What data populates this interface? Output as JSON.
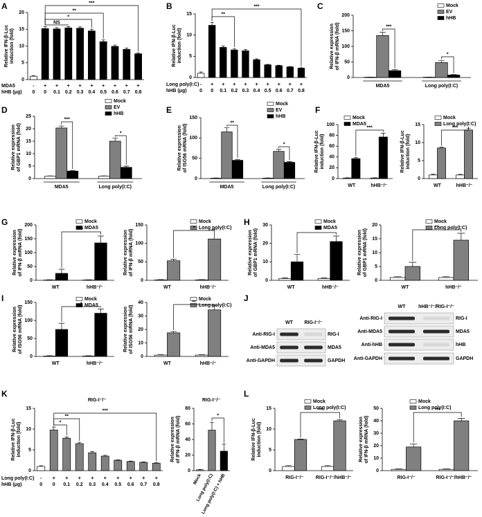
{
  "chart_data": [
    {
      "panel": "A",
      "type": "bar",
      "y_label": [
        "Relative IFN-β-Luc",
        "induction (fold)"
      ],
      "ylim": [
        0,
        20
      ],
      "yticks": [
        0,
        5,
        10,
        15,
        20
      ],
      "rows": [
        {
          "label": "MDA5",
          "values": [
            "-",
            "+",
            "+",
            "+",
            "+",
            "+",
            "+",
            "+",
            "+",
            "+"
          ]
        },
        {
          "label": "hHB (μg)",
          "values": [
            0,
            0,
            0.1,
            0.2,
            0.3,
            0.4,
            0.5,
            0.6,
            0.7,
            0.8
          ]
        }
      ],
      "values": [
        1,
        15.2,
        15.1,
        15.4,
        15.3,
        14.5,
        11.3,
        9.9,
        9,
        7.7
      ],
      "errors": [
        0.2,
        0.6,
        0.4,
        0.4,
        0.4,
        0.5,
        0.5,
        0.4,
        0.4,
        0.3
      ],
      "colors": [
        "#ffffff",
        "#000000",
        "#000000",
        "#000000",
        "#000000",
        "#000000",
        "#000000",
        "#000000",
        "#000000",
        "#000000"
      ],
      "annotations": [
        "NS",
        "*",
        "**",
        "***"
      ]
    },
    {
      "panel": "B",
      "type": "bar",
      "y_label": [
        "Relative IFN-β-Luc",
        "induction (fold)"
      ],
      "ylim": [
        0,
        15
      ],
      "yticks": [
        0,
        5,
        10,
        15
      ],
      "rows": [
        {
          "label": "Long poly(I:C)",
          "values": [
            "-",
            "+",
            "+",
            "+",
            "+",
            "+",
            "+",
            "+",
            "+",
            "+"
          ]
        },
        {
          "label": "hHB (μg)",
          "values": [
            0,
            0,
            0.1,
            0.2,
            0.3,
            0.4,
            0.5,
            0.6,
            0.7,
            0.8
          ]
        }
      ],
      "values": [
        1,
        12.3,
        7.1,
        6.5,
        6.3,
        4.2,
        3,
        2.8,
        2.5,
        2.2
      ],
      "errors": [
        0.3,
        0.7,
        0.3,
        0.3,
        0.3,
        0.2,
        0.1,
        0.1,
        0.1,
        0.1
      ],
      "colors": [
        "#ffffff",
        "#000000",
        "#000000",
        "#000000",
        "#000000",
        "#000000",
        "#000000",
        "#000000",
        "#000000",
        "#000000"
      ],
      "annotations": [
        "**",
        "***"
      ]
    },
    {
      "panel": "C",
      "type": "bar",
      "y_label": [
        "Relative expression",
        "of IFN-β mRNA (fold)"
      ],
      "ylim": [
        0,
        200
      ],
      "yticks": [
        0,
        50,
        100,
        150,
        200
      ],
      "categories": [
        "MDA5",
        "Long poly(I:C)"
      ],
      "series": [
        {
          "name": "Mock",
          "color": "#ffffff",
          "values": [
            1,
            1
          ],
          "errors": [
            0.5,
            0.5
          ]
        },
        {
          "name": "EV",
          "color": "#808080",
          "values": [
            135,
            48
          ],
          "errors": [
            10,
            6
          ]
        },
        {
          "name": "hHB",
          "color": "#000000",
          "values": [
            22,
            8
          ],
          "errors": [
            3,
            1.5
          ]
        }
      ],
      "annotations": [
        "***",
        "*"
      ]
    },
    {
      "panel": "D",
      "type": "bar",
      "y_label": [
        "Relative expression",
        "of GBP1 mRNA (fold)"
      ],
      "ylim": [
        0,
        25
      ],
      "yticks": [
        0,
        5,
        10,
        15,
        20,
        25
      ],
      "categories": [
        "MDA5",
        "Long poly(I:C)"
      ],
      "series": [
        {
          "name": "Mock",
          "color": "#ffffff",
          "values": [
            1,
            1
          ],
          "errors": [
            0.1,
            0.1
          ]
        },
        {
          "name": "EV",
          "color": "#808080",
          "values": [
            20.3,
            15
          ],
          "errors": [
            0.8,
            1.2
          ]
        },
        {
          "name": "hHB",
          "color": "#000000",
          "values": [
            3,
            4.5
          ],
          "errors": [
            0.2,
            0.5
          ]
        }
      ],
      "annotations": [
        "***",
        "*"
      ]
    },
    {
      "panel": "E",
      "type": "bar",
      "y_label": [
        "Relative expression",
        "of ISG56 mRNA (fold)"
      ],
      "ylim": [
        0,
        150
      ],
      "yticks": [
        0,
        50,
        100,
        150
      ],
      "categories": [
        "MDA5",
        "Long poly(I:C)"
      ],
      "series": [
        {
          "name": "Mock",
          "color": "#ffffff",
          "values": [
            1,
            1
          ],
          "errors": [
            0.5,
            0.5
          ]
        },
        {
          "name": "EV",
          "color": "#808080",
          "values": [
            115,
            67
          ],
          "errors": [
            10,
            5
          ]
        },
        {
          "name": "hHB",
          "color": "#000000",
          "values": [
            45,
            40
          ],
          "errors": [
            2,
            2
          ]
        }
      ],
      "annotations": [
        "**",
        "*"
      ]
    },
    {
      "panel": "F",
      "type": "bar",
      "y_label": [
        "Relative IFN-β-Luc",
        "induction (fold)"
      ],
      "ylim": [
        0,
        100
      ],
      "yticks": [
        0,
        20,
        40,
        60,
        80,
        100
      ],
      "categories": [
        "WT",
        "hHB⁻/⁻"
      ],
      "series": [
        {
          "name": "Mock",
          "color": "#ffffff",
          "values": [
            1,
            1
          ],
          "errors": [
            0.5,
            0.5
          ]
        },
        {
          "name": "MDA5",
          "color": "#000000",
          "values": [
            37,
            77
          ],
          "errors": [
            2,
            7
          ]
        }
      ],
      "annotations": [
        "***"
      ]
    },
    {
      "type": "bar",
      "y_label": [
        "Relative IFN-β-Luc",
        "induction (fold)"
      ],
      "ylim": [
        0,
        15
      ],
      "yticks": [
        0,
        5,
        10,
        15
      ],
      "categories": [
        "WT",
        "hHB⁻/⁻"
      ],
      "series": [
        {
          "name": "Mock",
          "color": "#ffffff",
          "values": [
            1,
            1
          ],
          "errors": [
            0.2,
            0.15
          ]
        },
        {
          "name": "Long poly(I:C)",
          "color": "#808080",
          "values": [
            8.5,
            13.5
          ],
          "errors": [
            0.2,
            0.5
          ]
        }
      ],
      "annotations": [
        "***"
      ]
    },
    {
      "panel": "G",
      "type": "bar",
      "y_label": [
        "Relative expression",
        "of IFN-β mRNA (fold)"
      ],
      "ylim": [
        0,
        200
      ],
      "yticks": [
        0,
        50,
        100,
        150,
        200
      ],
      "categories": [
        "WT",
        "hHB⁻/⁻"
      ],
      "series": [
        {
          "name": "Mock",
          "color": "#ffffff",
          "values": [
            1,
            1
          ],
          "errors": [
            1,
            1
          ]
        },
        {
          "name": "MDA5",
          "color": "#000000",
          "values": [
            25,
            135
          ],
          "errors": [
            15,
            25
          ]
        }
      ],
      "annotations": [
        "**"
      ]
    },
    {
      "type": "bar",
      "y_label": [
        "Relative expression",
        "of IFN-β mRNA (fold)"
      ],
      "ylim": [
        0,
        150
      ],
      "yticks": [
        0,
        50,
        100,
        150
      ],
      "categories": [
        "WT",
        "hHB⁻/⁻"
      ],
      "series": [
        {
          "name": "Mock",
          "color": "#ffffff",
          "values": [
            1,
            1
          ],
          "errors": [
            1,
            1
          ]
        },
        {
          "name": "Long poly(I:C)",
          "color": "#808080",
          "values": [
            53,
            112
          ],
          "errors": [
            4,
            25
          ]
        }
      ],
      "annotations": [
        "*"
      ]
    },
    {
      "panel": "H",
      "type": "bar",
      "y_label": [
        "Relative expression",
        "of GBP1 mRNA (fold)"
      ],
      "ylim": [
        0,
        30
      ],
      "yticks": [
        0,
        10,
        20,
        30
      ],
      "categories": [
        "WT",
        "hHB⁻/⁻"
      ],
      "series": [
        {
          "name": "Mock",
          "color": "#ffffff",
          "values": [
            1,
            1
          ],
          "errors": [
            0.3,
            0.3
          ]
        },
        {
          "name": "MDA5",
          "color": "#000000",
          "values": [
            10,
            21
          ],
          "errors": [
            4,
            3
          ]
        }
      ],
      "annotations": [
        "*"
      ]
    },
    {
      "type": "bar",
      "y_label": [
        "Relative expression",
        "of GBP1 mRNA (fold)"
      ],
      "ylim": [
        0,
        20
      ],
      "yticks": [
        0,
        5,
        10,
        15,
        20
      ],
      "categories": [
        "WT",
        "hHB⁻/⁻"
      ],
      "series": [
        {
          "name": "Mock",
          "color": "#ffffff",
          "values": [
            1,
            1
          ],
          "errors": [
            0.3,
            0.3
          ]
        },
        {
          "name": "Long poly(I:C)",
          "color": "#808080",
          "values": [
            5,
            14.5
          ],
          "errors": [
            1.5,
            2.5
          ]
        }
      ],
      "annotations": [
        "**"
      ]
    },
    {
      "panel": "I",
      "type": "bar",
      "y_label": [
        "Relative expression",
        "of ISG56 mRNA (fold)"
      ],
      "ylim": [
        0,
        150
      ],
      "yticks": [
        0,
        50,
        100,
        150
      ],
      "categories": [
        "WT",
        "hHB⁻/⁻"
      ],
      "series": [
        {
          "name": "Mock",
          "color": "#ffffff",
          "values": [
            1,
            1
          ],
          "errors": [
            1,
            1
          ]
        },
        {
          "name": "MDA5",
          "color": "#000000",
          "values": [
            75,
            120
          ],
          "errors": [
            17,
            12
          ]
        }
      ],
      "annotations": [
        "*"
      ]
    },
    {
      "type": "bar",
      "y_label": [
        "Relative expression",
        "of ISG56 mRNA (fold)"
      ],
      "ylim": [
        0,
        40
      ],
      "yticks": [
        0,
        10,
        20,
        30,
        40
      ],
      "categories": [
        "WT",
        "hHB⁻/⁻"
      ],
      "series": [
        {
          "name": "Mock",
          "color": "#ffffff",
          "values": [
            1,
            1
          ],
          "errors": [
            0.3,
            0.3
          ]
        },
        {
          "name": "Long poly(I:C)",
          "color": "#808080",
          "values": [
            17.5,
            34.5
          ],
          "errors": [
            1,
            3
          ]
        }
      ],
      "annotations": [
        "**"
      ]
    },
    {
      "panel": "J",
      "type": "blot",
      "columns": [
        "WT",
        "RIG-I⁻/⁻"
      ],
      "antibodies": [
        "Anti-RIG-I",
        "Anti-MDA5",
        "Anti-GAPDH"
      ],
      "proteins": [
        "RIG-I",
        "MDA5",
        "GAPDH"
      ]
    },
    {
      "type": "blot",
      "columns": [
        "WT",
        "hHB⁻/⁻/RIG-I⁻/⁻"
      ],
      "antibodies": [
        "Anti-RIG-I",
        "Anti-MDA5",
        "Anti-hHB",
        "Anti-GAPDH"
      ],
      "proteins": [
        "RIG-I",
        "MDA5",
        "hHB",
        "GAPDH"
      ]
    },
    {
      "panel": "K",
      "type": "bar",
      "title": "RIG-I⁻/⁻",
      "y_label": [
        "Relative IFN-β-Luc",
        "induction (fold)"
      ],
      "ylim": [
        0,
        15
      ],
      "yticks": [
        0,
        5,
        10,
        15
      ],
      "rows": [
        {
          "label": "Long poly(I:C)",
          "values": [
            "-",
            "+",
            "+",
            "+",
            "+",
            "+",
            "+",
            "+",
            "+",
            "+"
          ]
        },
        {
          "label": "hHB (μg)",
          "values": [
            0,
            0,
            0.1,
            0.2,
            0.3,
            0.4,
            0.5,
            0.6,
            0.7,
            0.8
          ]
        }
      ],
      "values": [
        1,
        9.8,
        7.8,
        6.5,
        4.3,
        3.5,
        2.5,
        2.2,
        2,
        1.8
      ],
      "errors": [
        0.2,
        0.7,
        0.3,
        0.3,
        0.3,
        0.2,
        0.1,
        0.1,
        0.1,
        0.1
      ],
      "colors": [
        "#ffffff",
        "#808080",
        "#808080",
        "#808080",
        "#808080",
        "#808080",
        "#808080",
        "#808080",
        "#808080",
        "#808080"
      ],
      "annotations": [
        "*",
        "**",
        "***"
      ]
    },
    {
      "type": "bar",
      "title": "RIG-I⁻/⁻",
      "y_label": [
        "Relative expression",
        "of IFN-β mRNA (fold)"
      ],
      "ylim": [
        0,
        80
      ],
      "yticks": [
        0,
        20,
        40,
        60,
        80
      ],
      "categories": [
        "Mock",
        "Long poly(I:C)",
        "Long poly(I:C) + hHB"
      ],
      "values": [
        1,
        52,
        25
      ],
      "errors": [
        0.5,
        10,
        9
      ],
      "colors": [
        "#ffffff",
        "#808080",
        "#000000"
      ],
      "annotations": [
        "*"
      ]
    },
    {
      "panel": "L",
      "type": "bar",
      "y_label": [
        "Relative IFN-β-Luc",
        "induction (fold)"
      ],
      "ylim": [
        0,
        15
      ],
      "yticks": [
        0,
        5,
        10,
        15
      ],
      "categories": [
        "RIG-I⁻/⁻",
        "RIG-I⁻/⁻/hHB⁻/⁻"
      ],
      "series": [
        {
          "name": "Mock",
          "color": "#ffffff",
          "values": [
            1,
            1
          ],
          "errors": [
            0.2,
            0.2
          ]
        },
        {
          "name": "Long poly(I:C)",
          "color": "#808080",
          "values": [
            7.5,
            12
          ],
          "errors": [
            0.1,
            0.3
          ]
        }
      ],
      "annotations": [
        "***"
      ]
    },
    {
      "type": "bar",
      "y_label": [
        "Relative expression",
        "of IFN-β mRNA (fold)"
      ],
      "ylim": [
        0,
        50
      ],
      "yticks": [
        0,
        10,
        20,
        30,
        40,
        50
      ],
      "categories": [
        "RIG-I⁻/⁻",
        "RIG-I⁻/⁻/hHB⁻/⁻"
      ],
      "series": [
        {
          "name": "Mock",
          "color": "#ffffff",
          "values": [
            1,
            1
          ],
          "errors": [
            0.5,
            0.5
          ]
        },
        {
          "name": "Long poly(I:C)",
          "color": "#808080",
          "values": [
            19,
            40
          ],
          "errors": [
            2.5,
            2
          ]
        }
      ],
      "annotations": [
        "***"
      ]
    }
  ]
}
